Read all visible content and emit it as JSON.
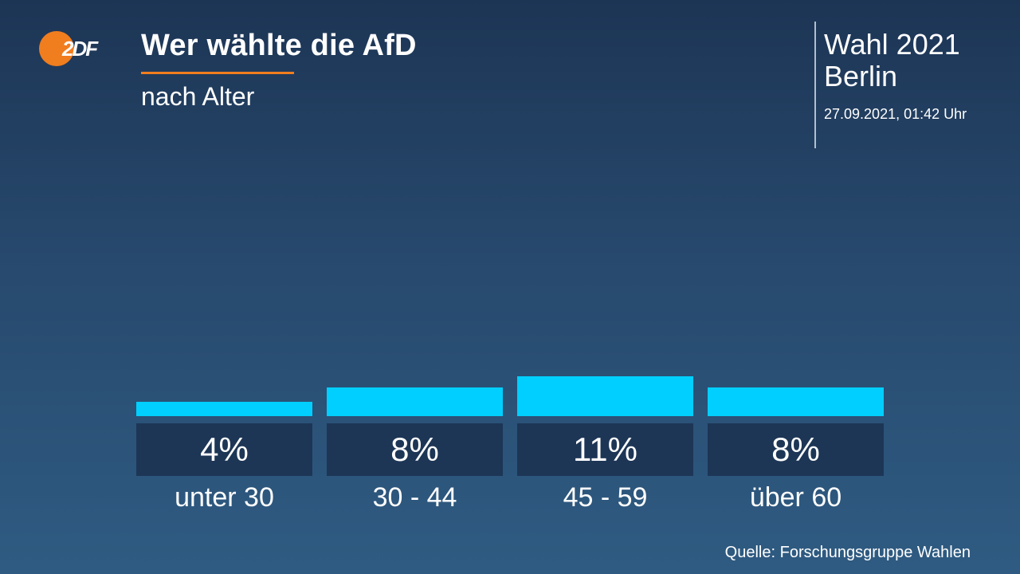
{
  "header": {
    "logo_text": "2DF",
    "title": "Wer wählte die AfD",
    "subtitle": "nach Alter"
  },
  "election": {
    "name": "Wahl 2021",
    "region": "Berlin",
    "timestamp": "27.09.2021, 01:42 Uhr"
  },
  "source": "Quelle: Forschungsgruppe Wahlen",
  "colors": {
    "accent": "#f07d1e",
    "bar": "#00cfff",
    "value_box": "#1d3656"
  },
  "chart_data": {
    "type": "bar",
    "categories": [
      "unter 30",
      "30 - 44",
      "45 - 59",
      "über 60"
    ],
    "values": [
      4,
      8,
      11,
      8
    ],
    "value_labels": [
      "4%",
      "8%",
      "11%",
      "8%"
    ],
    "title": "Wer wählte die AfD",
    "subtitle": "nach Alter",
    "unit": "%",
    "grid": false,
    "legend": "none"
  }
}
